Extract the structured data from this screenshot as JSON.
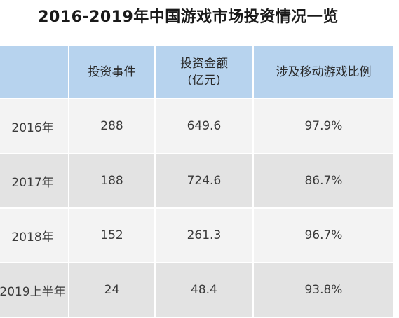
{
  "title": "2016-2019年中国游戏市场投资情况一览",
  "table": {
    "headers": [
      "",
      "投资事件",
      "投资金额\n(亿元)",
      "涉及移动游戏比例"
    ],
    "header_lines": {
      "col1": "投资事件",
      "col2_line1": "投资金额",
      "col2_line2": "(亿元)",
      "col3": "涉及移动游戏比例"
    },
    "rows": [
      {
        "year": "2016年",
        "events": "288",
        "amount": "649.6",
        "mobile_ratio": "97.9%"
      },
      {
        "year": "2017年",
        "events": "188",
        "amount": "724.6",
        "mobile_ratio": "86.7%"
      },
      {
        "year": "2018年",
        "events": "152",
        "amount": "261.3",
        "mobile_ratio": "96.7%"
      },
      {
        "year": "2019上半年",
        "events": "24",
        "amount": "48.4",
        "mobile_ratio": "93.8%"
      }
    ]
  },
  "colors": {
    "header_bg": "#b7d3ee",
    "row_light": "#f3f3f3",
    "row_dark": "#e3e3e3"
  }
}
